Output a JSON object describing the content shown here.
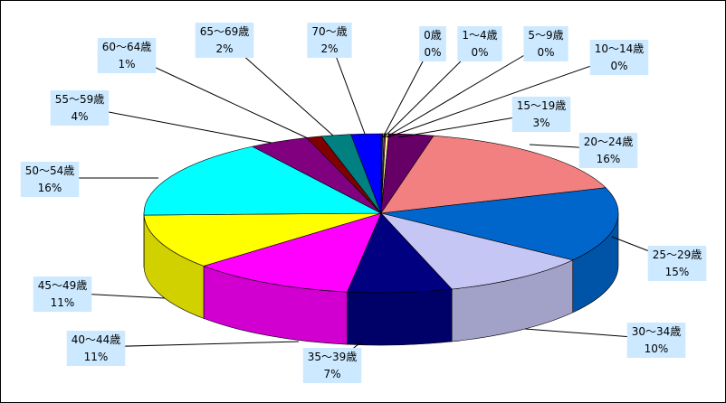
{
  "chart_data": {
    "type": "pie",
    "style": "3d-pie",
    "title": "",
    "legend": "none",
    "label_background": "#cce9ff",
    "categories": [
      "0歳",
      "1～4歳",
      "5～9歳",
      "10～14歳",
      "15～19歳",
      "20～24歳",
      "25～29歳",
      "30～34歳",
      "35～39歳",
      "40～44歳",
      "45～49歳",
      "50～54歳",
      "55～59歳",
      "60～64歳",
      "65～69歳",
      "70～歳"
    ],
    "values": [
      0.1,
      0.1,
      0.1,
      0.2,
      3,
      16,
      15,
      10,
      7,
      11,
      11,
      16,
      4,
      1,
      2,
      2
    ],
    "percent_labels": [
      "0%",
      "0%",
      "0%",
      "0%",
      "3%",
      "16%",
      "15%",
      "10%",
      "7%",
      "11%",
      "11%",
      "16%",
      "4%",
      "1%",
      "2%",
      "2%"
    ],
    "colors": [
      "#660066",
      "#7f7fff",
      "#993366",
      "#ffff99",
      "#660066",
      "#f28080",
      "#0066cc",
      "#c6c6f5",
      "#000080",
      "#ff00ff",
      "#ffff00",
      "#00ffff",
      "#800080",
      "#800000",
      "#008080",
      "#0000ff"
    ]
  }
}
